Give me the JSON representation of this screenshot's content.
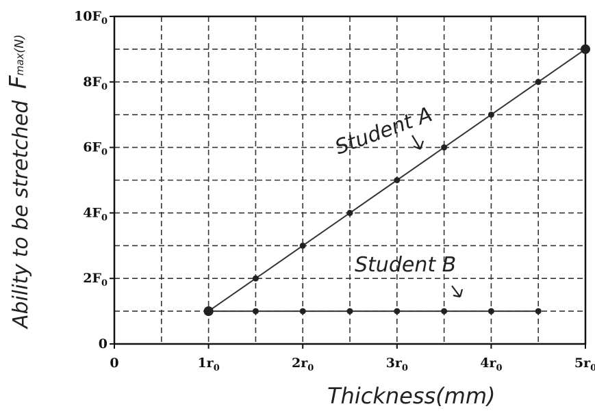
{
  "chart_data": {
    "type": "line",
    "xlabel": "Thickness(mm)",
    "ylabel_top": "F",
    "ylabel_top_sub": "max",
    "ylabel_top_unit": "(N)",
    "ylabel": "Ability to be stretched",
    "xlim": [
      0,
      5
    ],
    "ylim": [
      0,
      10
    ],
    "x_ticks": [
      {
        "value": 0,
        "label": "0"
      },
      {
        "value": 1,
        "label": "1r",
        "sub": "0"
      },
      {
        "value": 2,
        "label": "2r",
        "sub": "0"
      },
      {
        "value": 3,
        "label": "3r",
        "sub": "0"
      },
      {
        "value": 4,
        "label": "4r",
        "sub": "0"
      },
      {
        "value": 5,
        "label": "5r",
        "sub": "0"
      }
    ],
    "y_ticks": [
      {
        "value": 0,
        "label": "0"
      },
      {
        "value": 2,
        "label": "2F",
        "sub": "0"
      },
      {
        "value": 4,
        "label": "4F",
        "sub": "0"
      },
      {
        "value": 6,
        "label": "6F",
        "sub": "0"
      },
      {
        "value": 8,
        "label": "8F",
        "sub": "0"
      },
      {
        "value": 10,
        "label": "10F",
        "sub": "0"
      }
    ],
    "grid": true,
    "grid_step_x": 0.5,
    "grid_step_y": 1,
    "series": [
      {
        "name": "Student A",
        "x": [
          1,
          1.5,
          2,
          2.5,
          3,
          3.5,
          4,
          4.5,
          5
        ],
        "y": [
          1,
          2,
          3,
          4,
          5,
          6,
          7,
          8,
          9
        ]
      },
      {
        "name": "Student B",
        "x": [
          1,
          1.5,
          2,
          2.5,
          3,
          3.5,
          4,
          4.5
        ],
        "y": [
          1,
          1,
          1,
          1,
          1,
          1,
          1,
          1
        ]
      }
    ],
    "annotations": [
      {
        "text": "Student A",
        "series": "Student A"
      },
      {
        "text": "Student B",
        "series": "Student B"
      }
    ]
  }
}
